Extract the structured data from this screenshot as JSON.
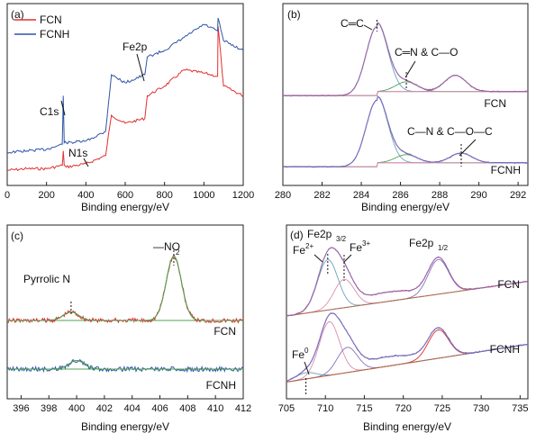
{
  "colors": {
    "fcn": "#e03030",
    "fcnh": "#2f55a8",
    "fit": "#8a6fbf",
    "green": "#4fa050",
    "teal": "#6aa4b8",
    "brown": "#b06a4a",
    "pink": "#d890a8"
  },
  "chart_data": [
    {
      "id": "a",
      "panel_label": "(a)",
      "type": "line",
      "xlabel": "Binding energy/eV",
      "ylabel": "",
      "xlim": [
        0,
        1200
      ],
      "xticks": [
        "0",
        "200",
        "400",
        "600",
        "800",
        "1000",
        "1200"
      ],
      "legend": {
        "position": "top-left",
        "entries": [
          "FCN",
          "FCNH"
        ]
      },
      "annotations": [
        "C1s",
        "N1s",
        "Fe2p"
      ],
      "series": [
        {
          "name": "FCN",
          "x": [
            0,
            100,
            200,
            280,
            285,
            290,
            300,
            400,
            500,
            530,
            600,
            700,
            712,
            800,
            900,
            1000,
            1070,
            1072,
            1100,
            1200
          ],
          "y": [
            0.06,
            0.07,
            0.07,
            0.09,
            0.18,
            0.09,
            0.08,
            0.1,
            0.15,
            0.4,
            0.35,
            0.38,
            0.52,
            0.58,
            0.68,
            0.66,
            0.64,
            0.95,
            0.58,
            0.52
          ]
        },
        {
          "name": "FCNH",
          "x": [
            0,
            100,
            200,
            280,
            285,
            290,
            300,
            400,
            500,
            530,
            600,
            700,
            712,
            800,
            900,
            1000,
            1070,
            1072,
            1100,
            1200
          ],
          "y": [
            0.17,
            0.18,
            0.19,
            0.22,
            0.52,
            0.23,
            0.23,
            0.24,
            0.3,
            0.65,
            0.6,
            0.65,
            0.76,
            0.8,
            0.88,
            0.96,
            0.92,
            1.0,
            0.86,
            0.8
          ]
        }
      ]
    },
    {
      "id": "b",
      "panel_label": "(b)",
      "type": "line",
      "xlabel": "Binding energy/eV",
      "ylabel": "",
      "xlim": [
        280,
        292.5
      ],
      "xticks": [
        "280",
        "282",
        "284",
        "286",
        "288",
        "290",
        "292"
      ],
      "annotations": [
        "C═C",
        "C═N & C—O",
        "C—N & C—O—C"
      ],
      "series": [
        {
          "name": "FCN",
          "label": "FCN",
          "peaks": [
            {
              "center": 284.8,
              "height": 0.85
            },
            {
              "center": 286.3,
              "height": 0.12
            },
            {
              "center": 288.8,
              "height": 0.2
            }
          ]
        },
        {
          "name": "FCNH",
          "label": "FCNH",
          "peaks": [
            {
              "center": 284.8,
              "height": 0.82
            },
            {
              "center": 286.3,
              "height": 0.1
            },
            {
              "center": 289.1,
              "height": 0.12
            }
          ]
        }
      ]
    },
    {
      "id": "c",
      "panel_label": "(c)",
      "type": "line",
      "xlabel": "Binding energy/eV",
      "ylabel": "",
      "xlim": [
        395,
        412
      ],
      "xticks": [
        "396",
        "398",
        "400",
        "402",
        "404",
        "406",
        "408",
        "410",
        "412"
      ],
      "annotations": [
        "Pyrrolic N",
        "—NO",
        "2"
      ],
      "series": [
        {
          "name": "FCN",
          "label": "FCN",
          "peaks": [
            {
              "center": 399.6,
              "height": 0.1
            },
            {
              "center": 407.0,
              "height": 0.75
            }
          ]
        },
        {
          "name": "FCNH",
          "label": "FCNH",
          "peaks": [
            {
              "center": 400.0,
              "height": 0.1
            }
          ]
        }
      ]
    },
    {
      "id": "d",
      "panel_label": "(d)",
      "type": "line",
      "xlabel": "Binding energy/eV",
      "ylabel": "",
      "xlim": [
        705,
        736
      ],
      "xticks": [
        "705",
        "710",
        "715",
        "720",
        "725",
        "730",
        "735"
      ],
      "annotations": [
        "Fe2p",
        "3/2",
        "Fe",
        "2+",
        "Fe",
        "3+",
        "Fe2p",
        "1/2",
        "Fe",
        "0"
      ],
      "series": [
        {
          "name": "FCN",
          "label": "FCN",
          "peaks": [
            {
              "center": 710.3,
              "height": 0.8
            },
            {
              "center": 712.4,
              "height": 0.45
            },
            {
              "center": 724.5,
              "height": 0.55
            }
          ]
        },
        {
          "name": "FCNH",
          "label": "FCNH",
          "peaks": [
            {
              "center": 707.5,
              "height": 0.1
            },
            {
              "center": 710.5,
              "height": 0.85
            },
            {
              "center": 712.8,
              "height": 0.4
            },
            {
              "center": 724.5,
              "height": 0.45
            }
          ]
        }
      ]
    }
  ]
}
